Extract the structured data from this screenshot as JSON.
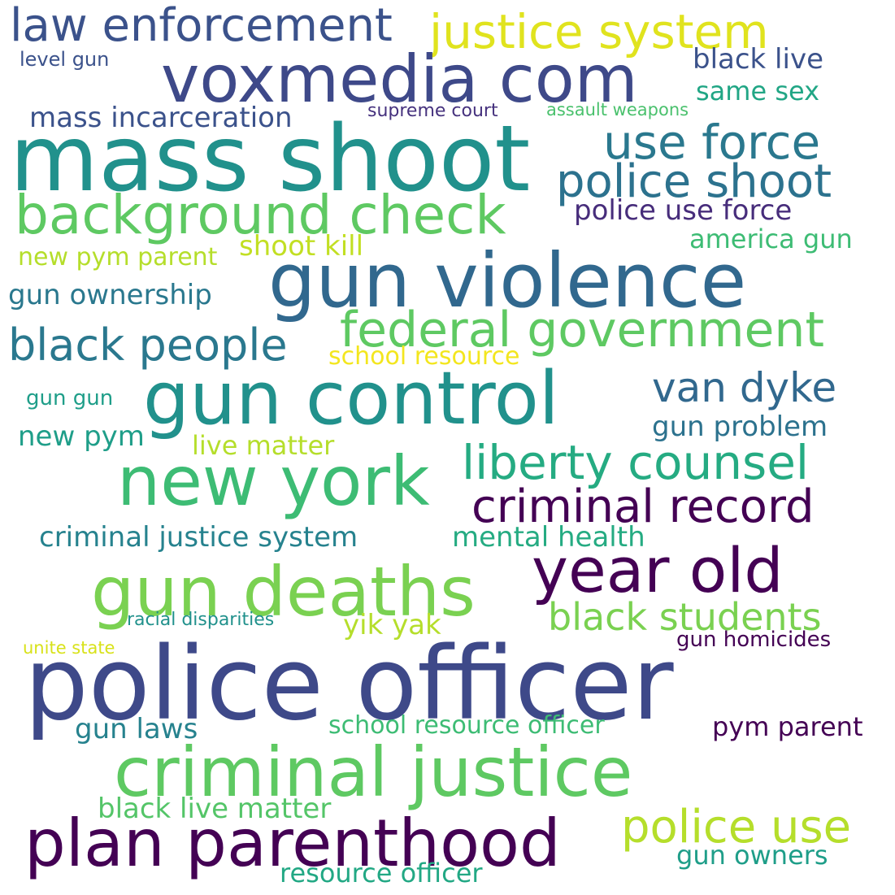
{
  "words": [
    {
      "text": "law enforcement",
      "color": "#3b528b"
    },
    {
      "text": "justice system",
      "color": "#e0e31e"
    },
    {
      "text": "voxmedia com",
      "color": "#3e4989"
    },
    {
      "text": "level gun",
      "color": "#3b528b"
    },
    {
      "text": "black live",
      "color": "#3b528b"
    },
    {
      "text": "same sex",
      "color": "#21a685"
    },
    {
      "text": "mass incarceration",
      "color": "#3b528b"
    },
    {
      "text": "supreme court",
      "color": "#46327e"
    },
    {
      "text": "assault weapons",
      "color": "#4ac16d"
    },
    {
      "text": "mass shoot",
      "color": "#21918c"
    },
    {
      "text": "use force",
      "color": "#2a788e"
    },
    {
      "text": "police shoot",
      "color": "#2c728e"
    },
    {
      "text": "background check",
      "color": "#5ec962"
    },
    {
      "text": "police use force",
      "color": "#472d7b"
    },
    {
      "text": "america gun",
      "color": "#3dbc74"
    },
    {
      "text": "shoot kill",
      "color": "#c2df23"
    },
    {
      "text": "new pym parent",
      "color": "#b5de2b"
    },
    {
      "text": "gun violence",
      "color": "#31688e"
    },
    {
      "text": "gun ownership",
      "color": "#2a788e"
    },
    {
      "text": "black people",
      "color": "#2a788e"
    },
    {
      "text": "federal government",
      "color": "#5ec962"
    },
    {
      "text": "school resource",
      "color": "#f3e61e"
    },
    {
      "text": "gun control",
      "color": "#21918c"
    },
    {
      "text": "van dyke",
      "color": "#31688e"
    },
    {
      "text": "gun gun",
      "color": "#1f9e89"
    },
    {
      "text": "gun problem",
      "color": "#2c728e"
    },
    {
      "text": "new pym",
      "color": "#1f9e89"
    },
    {
      "text": "live matter",
      "color": "#b5de2b"
    },
    {
      "text": "liberty counsel",
      "color": "#25ab82"
    },
    {
      "text": "new york",
      "color": "#3dbc74"
    },
    {
      "text": "criminal record",
      "color": "#440154"
    },
    {
      "text": "criminal justice system",
      "color": "#26828e"
    },
    {
      "text": "mental health",
      "color": "#25ab82"
    },
    {
      "text": "year old",
      "color": "#440154"
    },
    {
      "text": "gun deaths",
      "color": "#7ad151"
    },
    {
      "text": "black students",
      "color": "#7ad151"
    },
    {
      "text": "racial disparities",
      "color": "#21918c"
    },
    {
      "text": "yik yak",
      "color": "#b5de2b"
    },
    {
      "text": "unite state",
      "color": "#d8e219"
    },
    {
      "text": "gun homicides",
      "color": "#440154"
    },
    {
      "text": "police officer",
      "color": "#3e4989"
    },
    {
      "text": "gun laws",
      "color": "#26828e"
    },
    {
      "text": "school resource officer",
      "color": "#3dbc74"
    },
    {
      "text": "pym parent",
      "color": "#440154"
    },
    {
      "text": "criminal justice",
      "color": "#5ec962"
    },
    {
      "text": "black live matter",
      "color": "#54c568"
    },
    {
      "text": "plan parenthood",
      "color": "#440154"
    },
    {
      "text": "police use",
      "color": "#b5de2b"
    },
    {
      "text": "gun owners",
      "color": "#1f9e89"
    },
    {
      "text": "resource officer",
      "color": "#22a884"
    }
  ]
}
